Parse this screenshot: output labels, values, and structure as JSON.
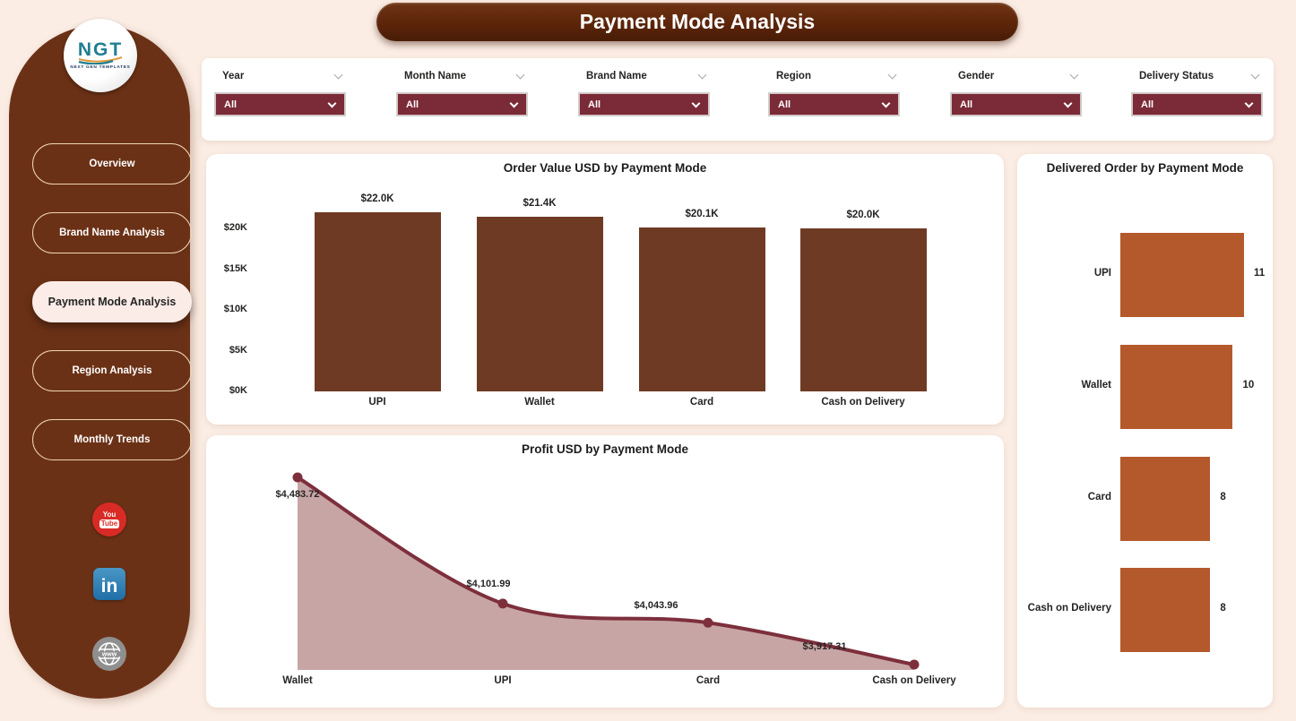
{
  "header": {
    "title": "Payment Mode Analysis"
  },
  "sidebar": {
    "logo_text": "NGT",
    "logo_subtext": "NEXT GEN TEMPLATES",
    "items": [
      {
        "label": "Overview"
      },
      {
        "label": "Brand Name Analysis"
      },
      {
        "label": "Payment Mode Analysis"
      },
      {
        "label": "Region Analysis"
      },
      {
        "label": "Monthly Trends"
      }
    ],
    "active_item": "Payment Mode Analysis",
    "social": [
      {
        "name": "youtube",
        "you": "You",
        "tube": "Tube"
      },
      {
        "name": "linkedin",
        "text": "in"
      },
      {
        "name": "website",
        "text": "www"
      }
    ]
  },
  "filters": [
    {
      "label": "Year",
      "value": "All"
    },
    {
      "label": "Month Name",
      "value": "All"
    },
    {
      "label": "Brand Name",
      "value": "All"
    },
    {
      "label": "Region",
      "value": "All"
    },
    {
      "label": "Gender",
      "value": "All"
    },
    {
      "label": "Delivery Status",
      "value": "All"
    }
  ],
  "colors": {
    "page_bg": "#FBEDE4",
    "sidebar": "#6B3116",
    "banner": "#5A2409",
    "slicer_maroon": "#7B2A37",
    "column_bar": "#6F3A23",
    "hbar_rust": "#B4592C",
    "line": "#7D2F3C",
    "area_fill": "#C8A5A5"
  },
  "chart_data": [
    {
      "id": "order_value",
      "type": "bar",
      "title": "Order Value USD by Payment Mode",
      "categories": [
        "UPI",
        "Wallet",
        "Card",
        "Cash on Delivery"
      ],
      "values": [
        22000,
        21400,
        20100,
        20000
      ],
      "value_labels": [
        "$22.0K",
        "$21.4K",
        "$20.1K",
        "$20.0K"
      ],
      "y_ticks": [
        "$20K",
        "$15K",
        "$10K",
        "$5K",
        "$0K"
      ],
      "y_tick_values": [
        20000,
        15000,
        10000,
        5000,
        0
      ],
      "ylim": [
        0,
        24000
      ],
      "bar_color": "#6F3A23",
      "grid": false,
      "legend": "none"
    },
    {
      "id": "profit",
      "type": "area",
      "title": "Profit USD by Payment Mode",
      "categories": [
        "Wallet",
        "UPI",
        "Card",
        "Cash on Delivery"
      ],
      "values": [
        4483.72,
        4101.99,
        4043.96,
        3917.31
      ],
      "value_labels": [
        "$4,483.72",
        "$4,101.99",
        "$4,043.96",
        "$3,917.31"
      ],
      "line_color": "#7D2F3C",
      "fill_color": "#C8A5A5",
      "marker": "dot",
      "grid": false,
      "legend": "none"
    },
    {
      "id": "delivered",
      "type": "hbar",
      "title": "Delivered Order by Payment Mode",
      "categories": [
        "UPI",
        "Wallet",
        "Card",
        "Cash on Delivery"
      ],
      "values": [
        11,
        10,
        8,
        8
      ],
      "xlim": [
        0,
        11
      ],
      "bar_color": "#B4592C",
      "grid": false,
      "legend": "none"
    }
  ]
}
